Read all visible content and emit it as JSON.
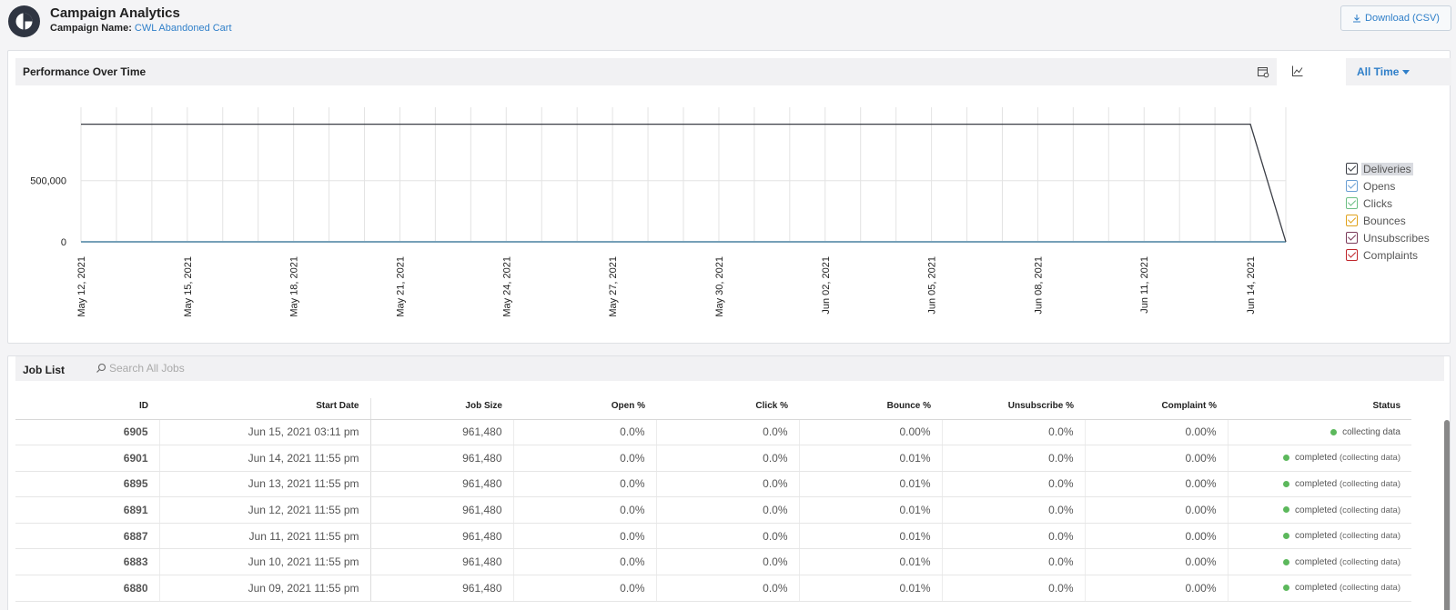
{
  "header": {
    "title": "Campaign Analytics",
    "campaign_label": "Campaign Name:",
    "campaign_name": "CWL Abandoned Cart",
    "download_label": "Download (CSV)"
  },
  "performance": {
    "title": "Performance Over Time",
    "range_label": "All Time"
  },
  "chart_data": {
    "type": "line",
    "x": [
      "May 12, 2021",
      "May 13, 2021",
      "May 14, 2021",
      "May 15, 2021",
      "May 16, 2021",
      "May 17, 2021",
      "May 18, 2021",
      "May 19, 2021",
      "May 20, 2021",
      "May 21, 2021",
      "May 22, 2021",
      "May 23, 2021",
      "May 24, 2021",
      "May 25, 2021",
      "May 26, 2021",
      "May 27, 2021",
      "May 28, 2021",
      "May 29, 2021",
      "May 30, 2021",
      "May 31, 2021",
      "Jun 01, 2021",
      "Jun 02, 2021",
      "Jun 03, 2021",
      "Jun 04, 2021",
      "Jun 05, 2021",
      "Jun 06, 2021",
      "Jun 07, 2021",
      "Jun 08, 2021",
      "Jun 09, 2021",
      "Jun 10, 2021",
      "Jun 11, 2021",
      "Jun 12, 2021",
      "Jun 13, 2021",
      "Jun 14, 2021",
      "Jun 15, 2021"
    ],
    "x_tick_labels": [
      "May 12, 2021",
      "May 15, 2021",
      "May 18, 2021",
      "May 21, 2021",
      "May 24, 2021",
      "May 27, 2021",
      "May 30, 2021",
      "Jun 02, 2021",
      "Jun 05, 2021",
      "Jun 08, 2021",
      "Jun 11, 2021",
      "Jun 14, 2021"
    ],
    "y_ticks": [
      0,
      500000
    ],
    "y_tick_labels": [
      "0",
      "500,000"
    ],
    "ylim": [
      0,
      1100000
    ],
    "grid": true,
    "legend_position": "right",
    "series": [
      {
        "name": "Deliveries",
        "color": "#3a3d45",
        "values": [
          961480,
          961480,
          961480,
          961480,
          961480,
          961480,
          961480,
          961480,
          961480,
          961480,
          961480,
          961480,
          961480,
          961480,
          961480,
          961480,
          961480,
          961480,
          961480,
          961480,
          961480,
          961480,
          961480,
          961480,
          961480,
          961480,
          961480,
          961480,
          961480,
          961480,
          961480,
          961480,
          961480,
          961480,
          0
        ]
      },
      {
        "name": "Opens",
        "color": "#6a9fd4",
        "values": [
          0,
          0,
          0,
          0,
          0,
          0,
          0,
          0,
          0,
          0,
          0,
          0,
          0,
          0,
          0,
          0,
          0,
          0,
          0,
          0,
          0,
          0,
          0,
          0,
          0,
          0,
          0,
          0,
          0,
          0,
          0,
          0,
          0,
          0,
          0
        ]
      },
      {
        "name": "Clicks",
        "color": "#6cbf84",
        "values": [
          0,
          0,
          0,
          0,
          0,
          0,
          0,
          0,
          0,
          0,
          0,
          0,
          0,
          0,
          0,
          0,
          0,
          0,
          0,
          0,
          0,
          0,
          0,
          0,
          0,
          0,
          0,
          0,
          0,
          0,
          0,
          0,
          0,
          0,
          0
        ]
      },
      {
        "name": "Bounces",
        "color": "#e0a21b",
        "values": [
          0,
          0,
          0,
          0,
          0,
          0,
          0,
          0,
          0,
          0,
          0,
          0,
          0,
          0,
          0,
          0,
          0,
          0,
          0,
          0,
          0,
          0,
          0,
          0,
          0,
          0,
          0,
          0,
          0,
          0,
          0,
          0,
          0,
          0,
          0
        ]
      },
      {
        "name": "Unsubscribes",
        "color": "#7a3a5a",
        "values": [
          0,
          0,
          0,
          0,
          0,
          0,
          0,
          0,
          0,
          0,
          0,
          0,
          0,
          0,
          0,
          0,
          0,
          0,
          0,
          0,
          0,
          0,
          0,
          0,
          0,
          0,
          0,
          0,
          0,
          0,
          0,
          0,
          0,
          0,
          0
        ]
      },
      {
        "name": "Complaints",
        "color": "#c0262c",
        "values": [
          0,
          0,
          0,
          0,
          0,
          0,
          0,
          0,
          0,
          0,
          0,
          0,
          0,
          0,
          0,
          0,
          0,
          0,
          0,
          0,
          0,
          0,
          0,
          0,
          0,
          0,
          0,
          0,
          0,
          0,
          0,
          0,
          0,
          0,
          0
        ]
      }
    ]
  },
  "jobs": {
    "title": "Job List",
    "search_placeholder": "Search All Jobs",
    "columns": [
      "ID",
      "Start Date",
      "Job Size",
      "Open %",
      "Click %",
      "Bounce %",
      "Unsubscribe %",
      "Complaint %",
      "Status"
    ],
    "rows": [
      {
        "id": "6905",
        "date": "Jun 15, 2021 03:11 pm",
        "size": "961,480",
        "open": "0.0%",
        "click": "0.0%",
        "bounce": "0.00%",
        "bounce_warn": false,
        "unsub": "0.0%",
        "complaint": "0.00%",
        "status": "collecting data",
        "status_sub": ""
      },
      {
        "id": "6901",
        "date": "Jun 14, 2021 11:55 pm",
        "size": "961,480",
        "open": "0.0%",
        "click": "0.0%",
        "bounce": "0.01%",
        "bounce_warn": true,
        "unsub": "0.0%",
        "complaint": "0.00%",
        "status": "completed",
        "status_sub": "(collecting data)"
      },
      {
        "id": "6895",
        "date": "Jun 13, 2021 11:55 pm",
        "size": "961,480",
        "open": "0.0%",
        "click": "0.0%",
        "bounce": "0.01%",
        "bounce_warn": true,
        "unsub": "0.0%",
        "complaint": "0.00%",
        "status": "completed",
        "status_sub": "(collecting data)"
      },
      {
        "id": "6891",
        "date": "Jun 12, 2021 11:55 pm",
        "size": "961,480",
        "open": "0.0%",
        "click": "0.0%",
        "bounce": "0.01%",
        "bounce_warn": true,
        "unsub": "0.0%",
        "complaint": "0.00%",
        "status": "completed",
        "status_sub": "(collecting data)"
      },
      {
        "id": "6887",
        "date": "Jun 11, 2021 11:55 pm",
        "size": "961,480",
        "open": "0.0%",
        "click": "0.0%",
        "bounce": "0.01%",
        "bounce_warn": true,
        "unsub": "0.0%",
        "complaint": "0.00%",
        "status": "completed",
        "status_sub": "(collecting data)"
      },
      {
        "id": "6883",
        "date": "Jun 10, 2021 11:55 pm",
        "size": "961,480",
        "open": "0.0%",
        "click": "0.0%",
        "bounce": "0.01%",
        "bounce_warn": true,
        "unsub": "0.0%",
        "complaint": "0.00%",
        "status": "completed",
        "status_sub": "(collecting data)"
      },
      {
        "id": "6880",
        "date": "Jun 09, 2021 11:55 pm",
        "size": "961,480",
        "open": "0.0%",
        "click": "0.0%",
        "bounce": "0.01%",
        "bounce_warn": true,
        "unsub": "0.0%",
        "complaint": "0.00%",
        "status": "completed",
        "status_sub": "(collecting data)"
      }
    ]
  },
  "colors": {
    "accent": "#2f7fc9",
    "warn": "#c89b12",
    "status_ok": "#5cb85c",
    "logo": "#2f3542"
  },
  "icons": {
    "logo": "app-logo-icon",
    "download": "download-icon",
    "calendar": "calendar-settings-icon",
    "chart": "line-chart-icon",
    "search": "search-icon"
  }
}
